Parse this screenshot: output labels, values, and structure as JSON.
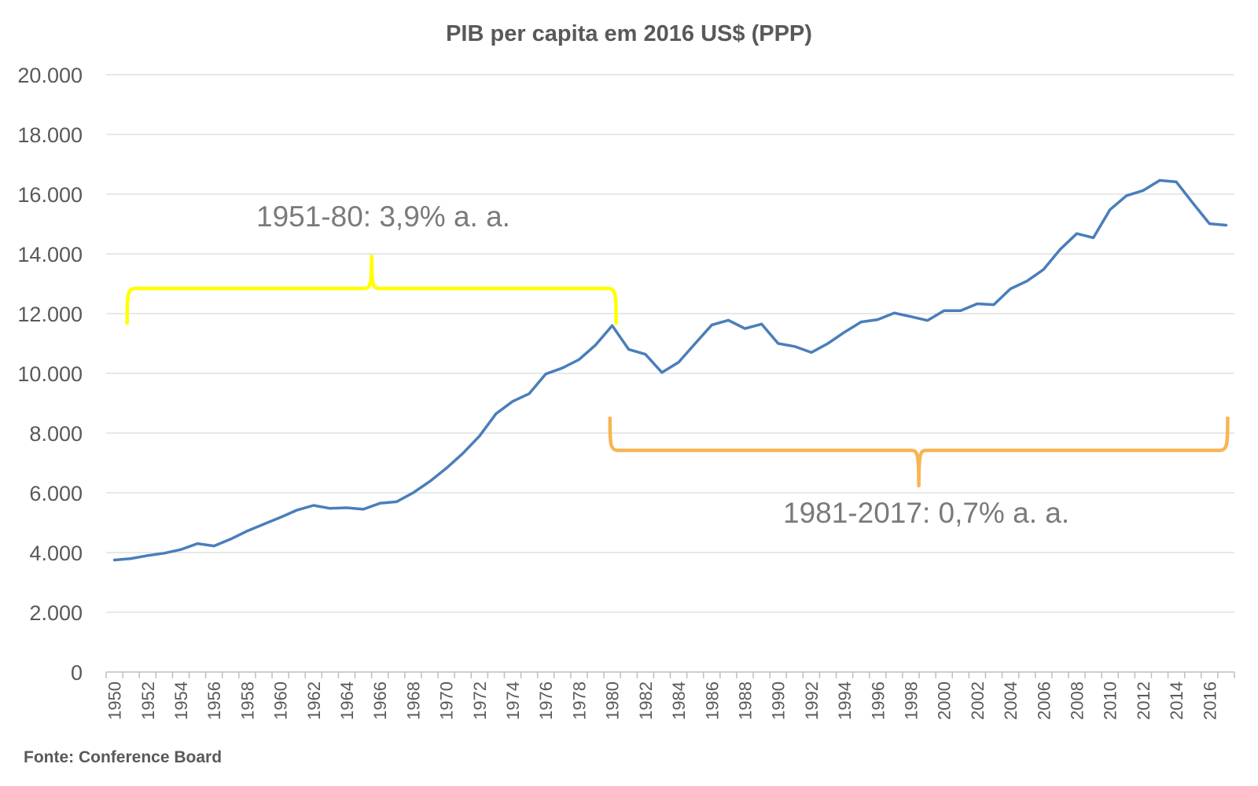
{
  "chart_data": {
    "type": "line",
    "title": "PIB per capita em 2016 US$ (PPP)",
    "xlabel": "",
    "ylabel": "",
    "ylim": [
      0,
      20000
    ],
    "yticks": [
      0,
      2000,
      4000,
      6000,
      8000,
      10000,
      12000,
      14000,
      16000,
      18000,
      20000
    ],
    "ytick_labels": [
      "0",
      "2.000",
      "4.000",
      "6.000",
      "8.000",
      "10.000",
      "12.000",
      "14.000",
      "16.000",
      "18.000",
      "20.000"
    ],
    "x_tick_labels": [
      "1950",
      "1952",
      "1954",
      "1956",
      "1958",
      "1960",
      "1962",
      "1964",
      "1966",
      "1968",
      "1970",
      "1972",
      "1974",
      "1976",
      "1978",
      "1980",
      "1982",
      "1984",
      "1986",
      "1988",
      "1990",
      "1992",
      "1994",
      "1996",
      "1998",
      "2000",
      "2002",
      "2004",
      "2006",
      "2008",
      "2010",
      "2012",
      "2014",
      "2016"
    ],
    "grid": true,
    "source": "Fonte: Conference Board",
    "series": [
      {
        "name": "PIB per capita",
        "color": "#4a7ebb",
        "x": [
          1950,
          1951,
          1952,
          1953,
          1954,
          1955,
          1956,
          1957,
          1958,
          1959,
          1960,
          1961,
          1962,
          1963,
          1964,
          1965,
          1966,
          1967,
          1968,
          1969,
          1970,
          1971,
          1972,
          1973,
          1974,
          1975,
          1976,
          1977,
          1978,
          1979,
          1980,
          1981,
          1982,
          1983,
          1984,
          1985,
          1986,
          1987,
          1988,
          1989,
          1990,
          1991,
          1992,
          1993,
          1994,
          1995,
          1996,
          1997,
          1998,
          1999,
          2000,
          2001,
          2002,
          2003,
          2004,
          2005,
          2006,
          2007,
          2008,
          2009,
          2010,
          2011,
          2012,
          2013,
          2014,
          2015,
          2016,
          2017
        ],
        "values": [
          3750,
          3800,
          3900,
          3980,
          4100,
          4300,
          4220,
          4450,
          4720,
          4950,
          5180,
          5420,
          5580,
          5480,
          5500,
          5450,
          5650,
          5700,
          6000,
          6380,
          6820,
          7320,
          7900,
          8650,
          9060,
          9320,
          9980,
          10180,
          10460,
          10950,
          11600,
          10800,
          10640,
          10030,
          10370,
          11000,
          11620,
          11780,
          11500,
          11650,
          11000,
          10900,
          10700,
          11000,
          11380,
          11720,
          11800,
          12020,
          11900,
          11770,
          12100,
          12100,
          12330,
          12300,
          12830,
          13090,
          13480,
          14150,
          14680,
          14540,
          15480,
          15950,
          16120,
          16460,
          16410,
          15700,
          15010,
          14960
        ]
      }
    ],
    "annotations": [
      {
        "label": "1951-80: 3,9% a. a.",
        "from": 1951,
        "to": 1980,
        "color": "#ffff00"
      },
      {
        "label": "1981-2017: 0,7% a. a.",
        "from": 1981,
        "to": 2017,
        "color": "#f8b552"
      }
    ]
  }
}
